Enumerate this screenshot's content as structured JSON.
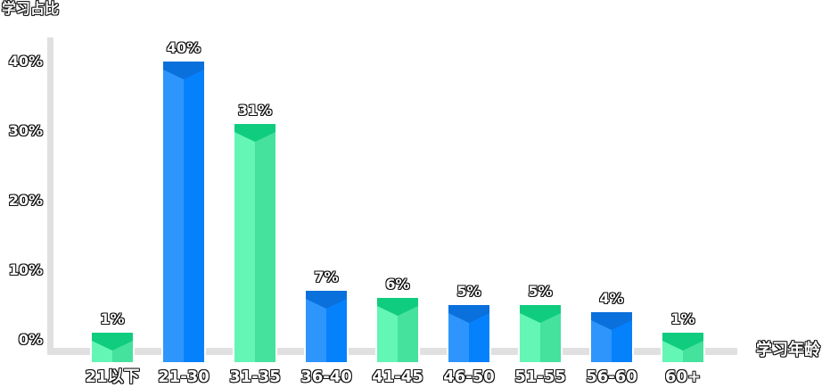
{
  "chart_data": {
    "type": "bar",
    "ylabel": "学习占比",
    "xlabel": "学习年龄",
    "categories": [
      "21以下",
      "21-30",
      "31-35",
      "36-40",
      "41-45",
      "46-50",
      "51-55",
      "56-60",
      "60+"
    ],
    "values": [
      1,
      40,
      31,
      7,
      6,
      5,
      5,
      4,
      1
    ],
    "value_labels": [
      "1%",
      "40%",
      "31%",
      "7%",
      "6%",
      "5%",
      "5%",
      "4%",
      "1%"
    ],
    "ytick_labels": [
      "0%",
      "10%",
      "20%",
      "30%",
      "40%"
    ],
    "ylim": [
      0,
      45
    ],
    "grid": false,
    "legend": "none",
    "bar_style": "3d-prism, alternating colors, lighter left face, darker right face, dark roof cap",
    "colors": {
      "green": {
        "left": "#63F6B4",
        "right": "#45E29D",
        "top": "#10CC7E"
      },
      "blue": {
        "left": "#2E95FC",
        "right": "#0681FC",
        "top": "#0A70DC"
      },
      "axis": "#E0E0E0",
      "label_fill": "#FFFFFF",
      "label_outline": "#111111"
    }
  }
}
